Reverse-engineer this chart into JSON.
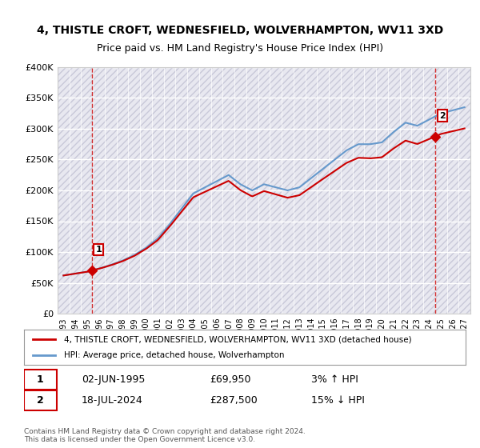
{
  "title": "4, THISTLE CROFT, WEDNESFIELD, WOLVERHAMPTON, WV11 3XD",
  "subtitle": "Price paid vs. HM Land Registry's House Price Index (HPI)",
  "ylabel": "",
  "ylim": [
    0,
    400000
  ],
  "yticks": [
    0,
    50000,
    100000,
    150000,
    200000,
    250000,
    300000,
    350000,
    400000
  ],
  "ytick_labels": [
    "£0",
    "£50K",
    "£100K",
    "£150K",
    "£200K",
    "£250K",
    "£300K",
    "£350K",
    "£400K"
  ],
  "background_color": "#ffffff",
  "plot_bg_color": "#f0f0f8",
  "grid_color": "#ffffff",
  "hatch_color": "#d0d0e8",
  "sale1_date": 1995.42,
  "sale1_price": 69950,
  "sale1_label": "1",
  "sale2_date": 2024.54,
  "sale2_price": 287500,
  "sale2_label": "2",
  "sale_color": "#cc0000",
  "hpi_color": "#6699cc",
  "vline_color": "#cc0000",
  "legend_property": "4, THISTLE CROFT, WEDNESFIELD, WOLVERHAMPTON, WV11 3XD (detached house)",
  "legend_hpi": "HPI: Average price, detached house, Wolverhampton",
  "info1_num": "1",
  "info1_date": "02-JUN-1995",
  "info1_price": "£69,950",
  "info1_hpi": "3% ↑ HPI",
  "info2_num": "2",
  "info2_date": "18-JUL-2024",
  "info2_price": "£287,500",
  "info2_hpi": "15% ↓ HPI",
  "footer": "Contains HM Land Registry data © Crown copyright and database right 2024.\nThis data is licensed under the Open Government Licence v3.0.",
  "hpi_years": [
    1993,
    1994,
    1995,
    1996,
    1997,
    1998,
    1999,
    2000,
    2001,
    2002,
    2003,
    2004,
    2005,
    2006,
    2007,
    2008,
    2009,
    2010,
    2011,
    2012,
    2013,
    2014,
    2015,
    2016,
    2017,
    2018,
    2019,
    2020,
    2021,
    2022,
    2023,
    2024,
    2025,
    2026,
    2027
  ],
  "hpi_values": [
    62000,
    65000,
    68000,
    73000,
    79000,
    86000,
    95000,
    107000,
    122000,
    145000,
    170000,
    195000,
    205000,
    215000,
    225000,
    210000,
    200000,
    210000,
    205000,
    200000,
    205000,
    220000,
    235000,
    250000,
    265000,
    275000,
    275000,
    278000,
    295000,
    310000,
    305000,
    315000,
    325000,
    330000,
    335000
  ],
  "xtick_years": [
    1993,
    1994,
    1995,
    1996,
    1997,
    1998,
    1999,
    2000,
    2001,
    2002,
    2003,
    2004,
    2005,
    2006,
    2007,
    2008,
    2009,
    2010,
    2011,
    2012,
    2013,
    2014,
    2015,
    2016,
    2017,
    2018,
    2019,
    2020,
    2021,
    2022,
    2023,
    2024,
    2025,
    2026,
    2027
  ]
}
